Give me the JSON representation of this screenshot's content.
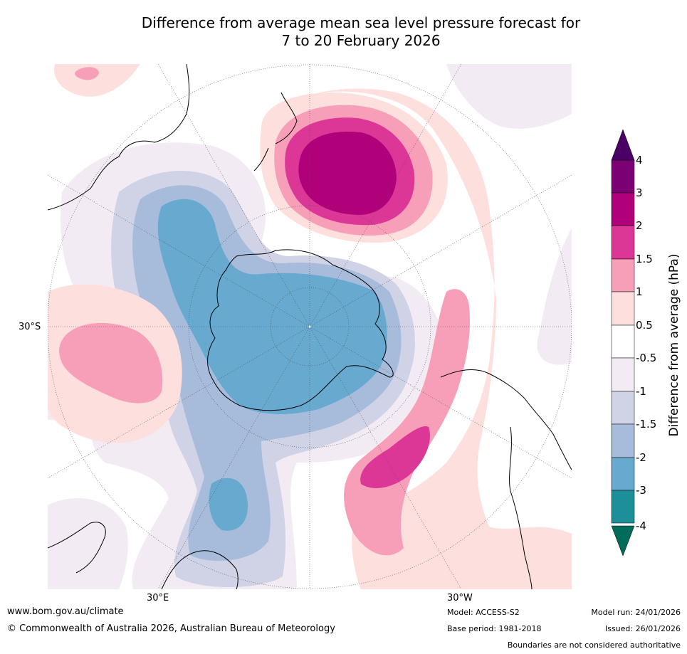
{
  "title": {
    "line1": "Difference from average mean sea level pressure forecast for",
    "line2": "7 to 20 February 2026"
  },
  "map": {
    "projection": "south polar stereographic",
    "lat_label": "30°S",
    "lon_labels": [
      "30°E",
      "30°W"
    ]
  },
  "colorbar": {
    "title": "Difference from average (hPa)",
    "tick_labels": [
      "4",
      "3",
      "2",
      "1.5",
      "1",
      "0.5",
      "-0.5",
      "-1",
      "-1.5",
      "-2",
      "-3",
      "-4"
    ],
    "colors": {
      "over": "#4b0066",
      "3_to_4": "#7a0074",
      "2_to_3": "#b0007a",
      "1.5_to_2": "#dc3796",
      "1_to_1.5": "#f79fb8",
      "0.5_to_1": "#fde0de",
      "-0.5_to_0.5": "#ffffff",
      "-1_to_-0.5": "#f3ebf3",
      "-1.5_to_-1": "#d0d2e6",
      "-2_to_-1.5": "#a7bbdb",
      "-3_to_-2": "#67a9cf",
      "-4_to_-3": "#1c9099",
      "under": "#016c59"
    }
  },
  "footer": {
    "website": "www.bom.gov.au/climate",
    "copyright": "© Commonwealth of Australia 2026, Australian Bureau of Meteorology",
    "model": "Model: ACCESS-S2",
    "base_period": "Base period: 1981-2018",
    "model_run": "Model run: 24/01/2026",
    "issued": "Issued: 26/01/2026",
    "disclaimer": "Boundaries are not considered authoritative"
  }
}
